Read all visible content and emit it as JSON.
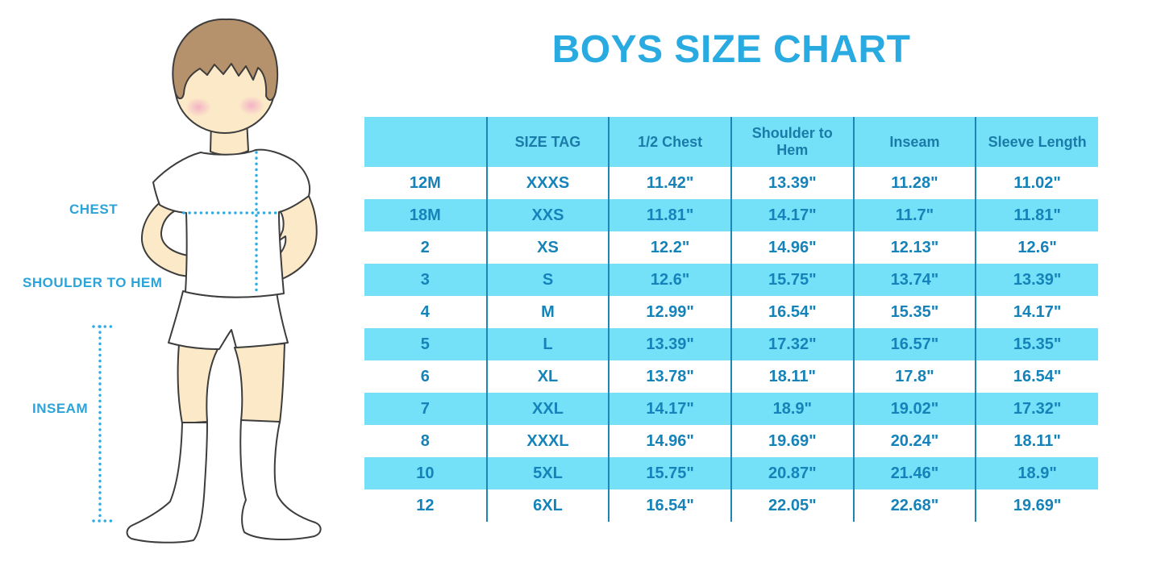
{
  "title": "BOYS SIZE CHART",
  "colors": {
    "title": "#29ABE2",
    "table_fill": "#74E1F8",
    "table_divider": "#1C86B8",
    "table_header_text": "#1A7BA8",
    "table_cell_text": "#1583B9",
    "figure_label": "#2AA4D9",
    "dotted_line": "#2FACE2",
    "skin": "#FCE9C8",
    "hair": "#B5926B",
    "blush": "#F2A9C4",
    "outline": "#3D3D3D"
  },
  "figure": {
    "labels": [
      {
        "id": "chest",
        "text": "CHEST"
      },
      {
        "id": "shoulder_to_hem",
        "text": "SHOULDER TO HEM"
      },
      {
        "id": "inseam",
        "text": "INSEAM"
      }
    ]
  },
  "chart_data": {
    "type": "table",
    "title": "BOYS SIZE CHART",
    "columns": [
      "",
      "SIZE TAG",
      "1/2 Chest",
      "Shoulder to Hem",
      "Inseam",
      "Sleeve Length"
    ],
    "rows": [
      [
        "12M",
        "XXXS",
        "11.42\"",
        "13.39\"",
        "11.28\"",
        "11.02\""
      ],
      [
        "18M",
        "XXS",
        "11.81\"",
        "14.17\"",
        "11.7\"",
        "11.81\""
      ],
      [
        "2",
        "XS",
        "12.2\"",
        "14.96\"",
        "12.13\"",
        "12.6\""
      ],
      [
        "3",
        "S",
        "12.6\"",
        "15.75\"",
        "13.74\"",
        "13.39\""
      ],
      [
        "4",
        "M",
        "12.99\"",
        "16.54\"",
        "15.35\"",
        "14.17\""
      ],
      [
        "5",
        "L",
        "13.39\"",
        "17.32\"",
        "16.57\"",
        "15.35\""
      ],
      [
        "6",
        "XL",
        "13.78\"",
        "18.11\"",
        "17.8\"",
        "16.54\""
      ],
      [
        "7",
        "XXL",
        "14.17\"",
        "18.9\"",
        "19.02\"",
        "17.32\""
      ],
      [
        "8",
        "XXXL",
        "14.96\"",
        "19.69\"",
        "20.24\"",
        "18.11\""
      ],
      [
        "10",
        "5XL",
        "15.75\"",
        "20.87\"",
        "21.46\"",
        "18.9\""
      ],
      [
        "12",
        "6XL",
        "16.54\"",
        "22.05\"",
        "22.68\"",
        "19.69\""
      ]
    ],
    "legend": "row stripes alternate white and light cyan; measurements in inches"
  }
}
